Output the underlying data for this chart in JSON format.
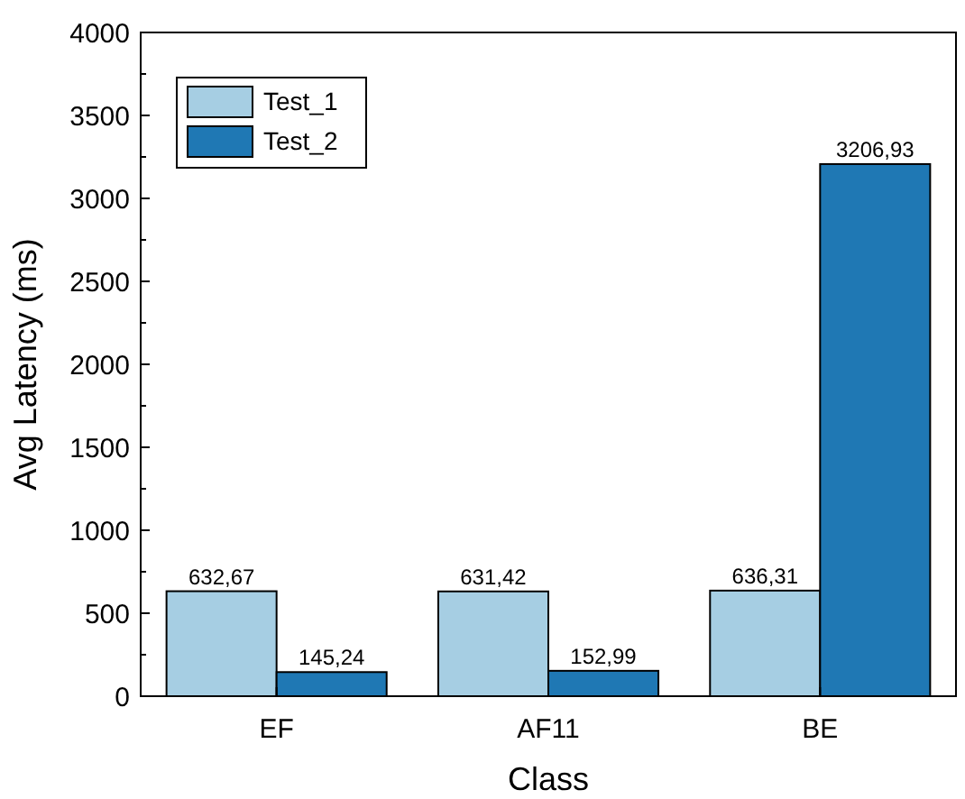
{
  "chart_data": {
    "type": "bar",
    "xlabel": "Class",
    "ylabel": "Avg Latency (ms)",
    "categories": [
      "EF",
      "AF11",
      "BE"
    ],
    "series": [
      {
        "name": "Test_1",
        "color": "#a6cee3",
        "values": [
          632.67,
          631.42,
          636.31
        ],
        "value_labels": [
          "632,67",
          "631,42",
          "636,31"
        ]
      },
      {
        "name": "Test_2",
        "color": "#1f78b4",
        "values": [
          145.24,
          152.99,
          3206.93
        ],
        "value_labels": [
          "145,24",
          "152,99",
          "3206,93"
        ]
      }
    ],
    "ylim": [
      0,
      4000
    ],
    "yticks": [
      0,
      500,
      1000,
      1500,
      2000,
      2500,
      3000,
      3500,
      4000
    ],
    "legend": "top left",
    "grid": false
  }
}
